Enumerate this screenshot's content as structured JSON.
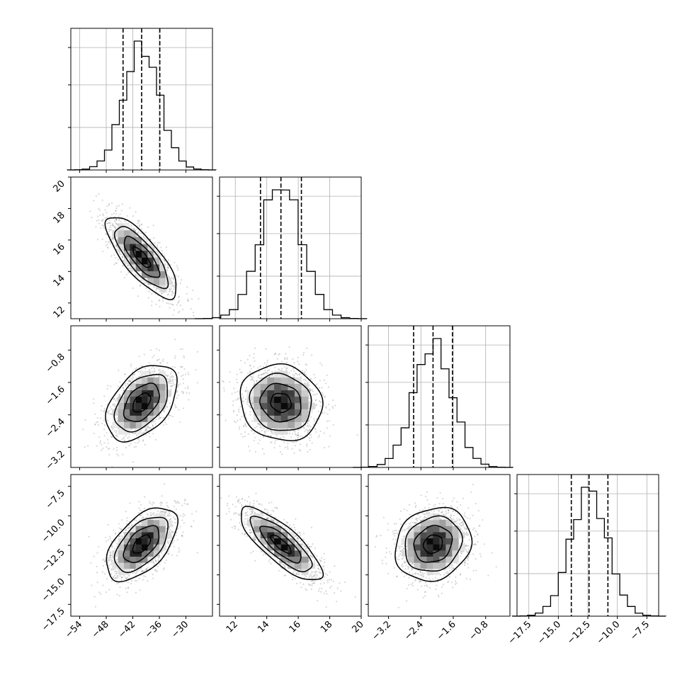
{
  "chart_data": {
    "type": "corner",
    "colors": {
      "ink": "#000000",
      "grid": "#b0b0b0",
      "points": "#8f8f8f"
    },
    "grid": true,
    "parameters": [
      {
        "id": "p0",
        "range": [
          -56,
          -24
        ],
        "ticks": [
          -54,
          -48,
          -42,
          -36,
          -30
        ],
        "tick_labels": [
          "−54",
          "−48",
          "−42",
          "−36",
          "−30"
        ],
        "mean": -40,
        "sd": 4.0,
        "quantiles": [
          -44.2,
          -40.0,
          -35.9
        ]
      },
      {
        "id": "p1",
        "range": [
          11,
          20
        ],
        "ticks": [
          12,
          14,
          16,
          18,
          20
        ],
        "tick_labels": [
          "12",
          "14",
          "16",
          "18",
          "20"
        ],
        "mean": 14.9,
        "sd": 1.3,
        "quantiles": [
          13.6,
          14.9,
          16.2
        ]
      },
      {
        "id": "p2",
        "range": [
          -3.7,
          -0.2
        ],
        "ticks": [
          -3.2,
          -2.4,
          -1.6,
          -0.8
        ],
        "tick_labels": [
          "−3.2",
          "−2.4",
          "−1.6",
          "−0.8"
        ],
        "mean": -2.1,
        "sd": 0.47,
        "quantiles": [
          -2.58,
          -2.1,
          -1.62
        ]
      },
      {
        "id": "p3",
        "range": [
          -18.5,
          -6.5
        ],
        "ticks": [
          -17.5,
          -15.0,
          -12.5,
          -10.0,
          -7.5
        ],
        "tick_labels": [
          "−17.5",
          "−15.0",
          "−12.5",
          "−10.0",
          "−7.5"
        ],
        "mean": -12.4,
        "sd": 1.55,
        "quantiles": [
          -13.9,
          -12.4,
          -10.8
        ]
      }
    ],
    "correlations": [
      {
        "pair": [
          1,
          0
        ],
        "rho": -0.78
      },
      {
        "pair": [
          2,
          0
        ],
        "rho": 0.45
      },
      {
        "pair": [
          2,
          1
        ],
        "rho": -0.1
      },
      {
        "pair": [
          3,
          0
        ],
        "rho": 0.55
      },
      {
        "pair": [
          3,
          1
        ],
        "rho": -0.8
      },
      {
        "pair": [
          3,
          2
        ],
        "rho": 0.15
      }
    ],
    "contour_levels_sigma": [
      0.5,
      1.0,
      1.5,
      2.0
    ],
    "histogram_bins": 20,
    "samples_per_panel": 1400
  }
}
